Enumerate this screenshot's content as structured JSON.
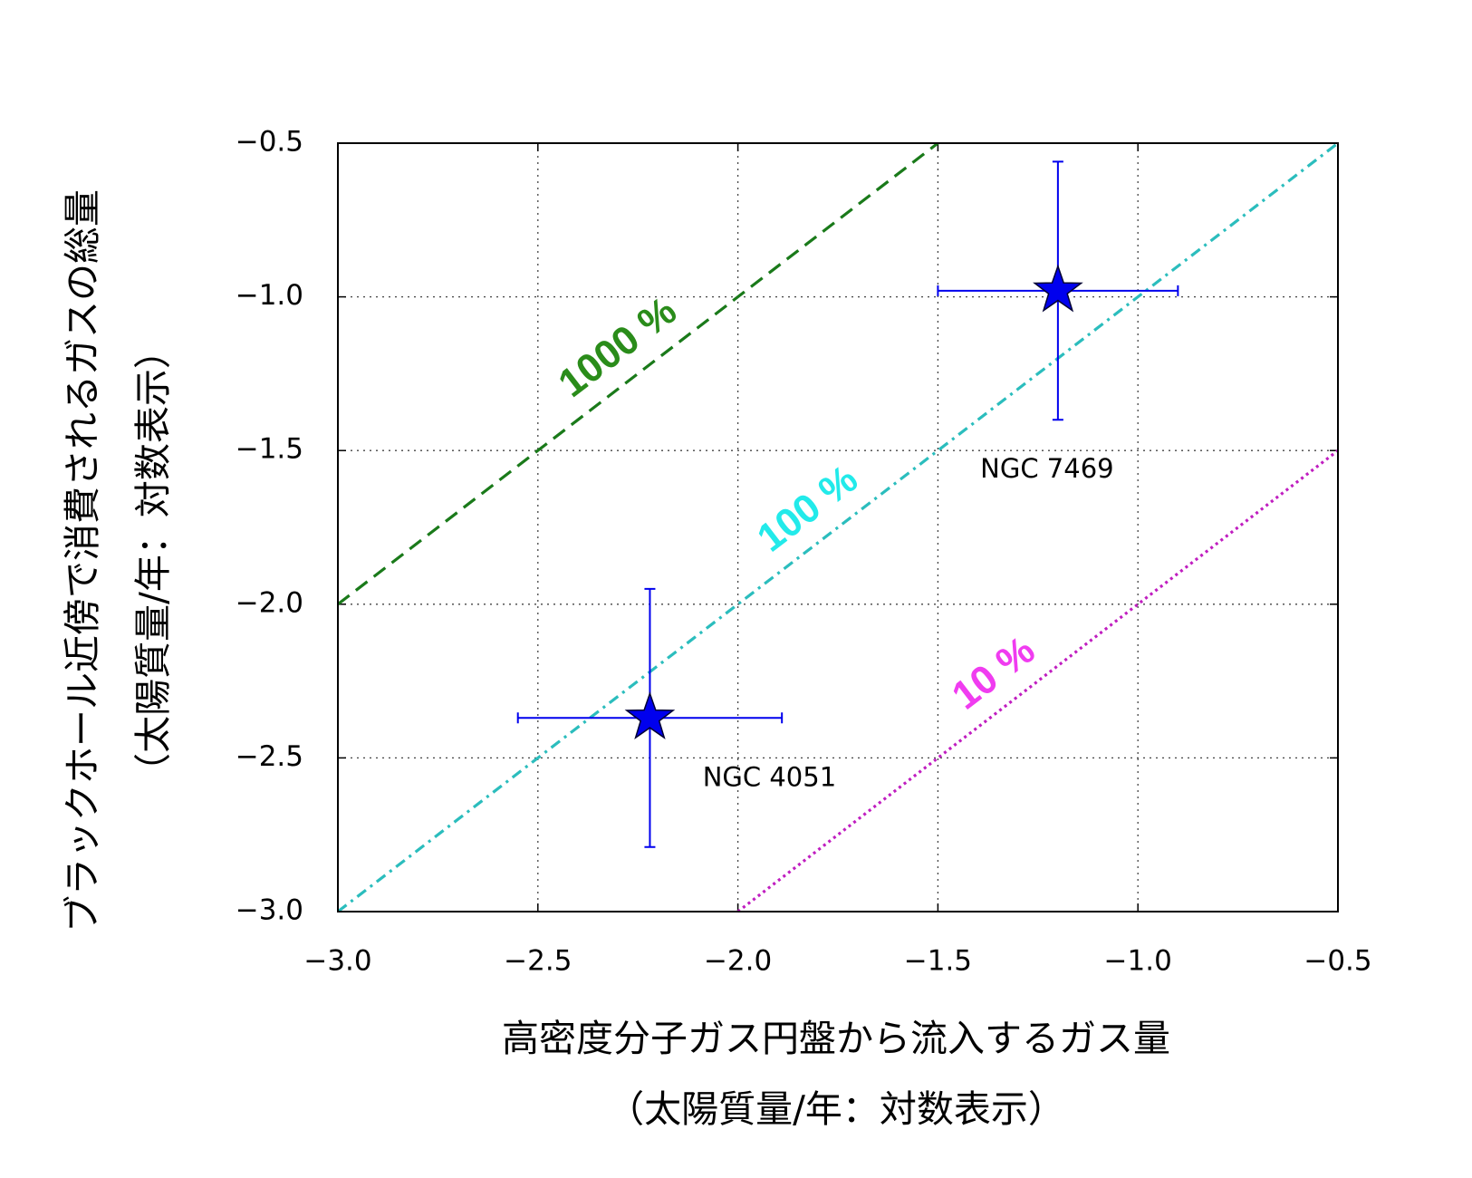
{
  "chart_data": {
    "type": "scatter",
    "x_label": [
      "高密度分子ガス円盤から流入するガス量",
      "（太陽質量/年：対数表示）"
    ],
    "y_label": [
      "ブラックホール近傍で消費されるガスの総量",
      "（太陽質量/年：対数表示）"
    ],
    "xlim": [
      -3,
      -0.5
    ],
    "ylim": [
      -3,
      -0.5
    ],
    "xticks": [
      {
        "value": -3,
        "label": "−3.0"
      },
      {
        "value": -2.5,
        "label": "−2.5"
      },
      {
        "value": -2,
        "label": "−2.0"
      },
      {
        "value": -1.5,
        "label": "−1.5"
      },
      {
        "value": -1,
        "label": "−1.0"
      },
      {
        "value": -0.5,
        "label": "−0.5"
      }
    ],
    "yticks": [
      {
        "value": -3,
        "label": "−3.0"
      },
      {
        "value": -2.5,
        "label": "−2.5"
      },
      {
        "value": -2,
        "label": "−2.0"
      },
      {
        "value": -1.5,
        "label": "−1.5"
      },
      {
        "value": -1,
        "label": "−1.0"
      },
      {
        "value": -0.5,
        "label": "−0.5"
      }
    ],
    "grid": true,
    "lines": [
      {
        "name": "1000 %",
        "color": "#1a7a1a",
        "label_color": "#2a8c1a",
        "style": "dashed",
        "x": [
          -3,
          -1.5
        ],
        "values": [
          -2,
          -0.5
        ]
      },
      {
        "name": "100 %",
        "color": "#2bbdbd",
        "label_color": "#22eaea",
        "style": "dashdot",
        "x": [
          -3,
          -0.5
        ],
        "values": [
          -3,
          -0.5
        ]
      },
      {
        "name": "10 %",
        "color": "#c01ec0",
        "label_color": "#f03cf0",
        "style": "dotted",
        "x": [
          -2,
          -0.5
        ],
        "values": [
          -3,
          -1.5
        ]
      }
    ],
    "points": [
      {
        "name": "NGC 7469",
        "x": -1.2,
        "y": -0.98,
        "xerr": 0.3,
        "yerr": 0.42
      },
      {
        "name": "NGC 4051",
        "x": -2.22,
        "y": -2.37,
        "xerr": 0.33,
        "yerr": 0.42
      }
    ],
    "color": "#0000ee"
  }
}
